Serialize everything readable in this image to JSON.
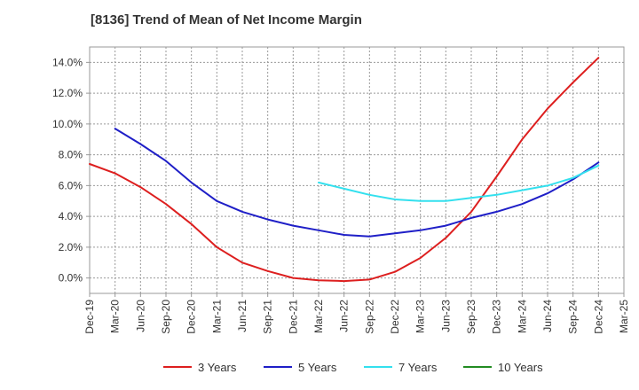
{
  "chart_data": {
    "type": "line",
    "title": "[8136]  Trend of Mean of Net Income Margin",
    "xlabel": "",
    "ylabel": "",
    "x": [
      "Dec-19",
      "Mar-20",
      "Jun-20",
      "Sep-20",
      "Dec-20",
      "Mar-21",
      "Jun-21",
      "Sep-21",
      "Dec-21",
      "Mar-22",
      "Jun-22",
      "Sep-22",
      "Dec-22",
      "Mar-23",
      "Jun-23",
      "Sep-23",
      "Dec-23",
      "Mar-24",
      "Jun-24",
      "Sep-24",
      "Dec-24",
      "Mar-25"
    ],
    "ylim": [
      -1.0,
      15.0
    ],
    "yticks": [
      "0.0%",
      "2.0%",
      "4.0%",
      "6.0%",
      "8.0%",
      "10.0%",
      "12.0%",
      "14.0%"
    ],
    "ytick_values": [
      0,
      2,
      4,
      6,
      8,
      10,
      12,
      14
    ],
    "grid": true,
    "legend_position": "bottom",
    "series": [
      {
        "name": "3 Years",
        "color": "#dd1f1f",
        "values": [
          7.4,
          6.8,
          5.9,
          4.8,
          3.5,
          2.0,
          1.0,
          0.45,
          0.0,
          -0.15,
          -0.2,
          -0.1,
          0.4,
          1.3,
          2.6,
          4.3,
          6.6,
          9.0,
          11.0,
          12.7,
          14.3,
          null
        ]
      },
      {
        "name": "5 Years",
        "color": "#1f1fc7",
        "values": [
          null,
          9.7,
          8.7,
          7.6,
          6.2,
          5.0,
          4.3,
          3.8,
          3.4,
          3.1,
          2.8,
          2.7,
          2.9,
          3.1,
          3.4,
          3.9,
          4.3,
          4.8,
          5.5,
          6.4,
          7.5,
          null
        ]
      },
      {
        "name": "7 Years",
        "color": "#33e0ee",
        "values": [
          null,
          null,
          null,
          null,
          null,
          null,
          null,
          null,
          null,
          6.2,
          5.8,
          5.4,
          5.1,
          5.0,
          5.0,
          5.2,
          5.4,
          5.7,
          6.0,
          6.5,
          7.3,
          null
        ]
      },
      {
        "name": "10 Years",
        "color": "#228b22",
        "values": [
          null,
          null,
          null,
          null,
          null,
          null,
          null,
          null,
          null,
          null,
          null,
          null,
          null,
          null,
          null,
          null,
          null,
          null,
          null,
          null,
          null,
          null
        ]
      }
    ]
  }
}
